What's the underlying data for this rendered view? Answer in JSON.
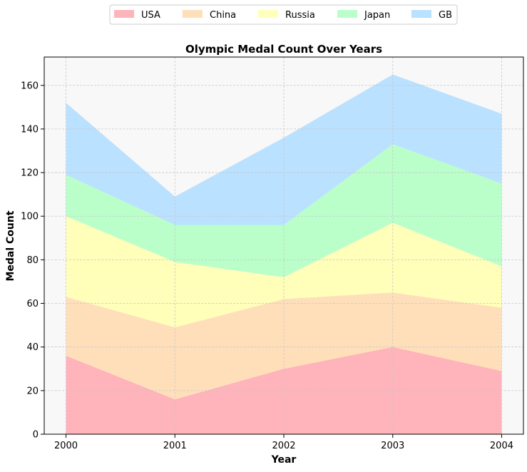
{
  "chart_data": {
    "type": "area",
    "stacked": true,
    "title": "Olympic Medal Count Over Years",
    "xlabel": "Year",
    "ylabel": "Medal Count",
    "x": [
      2000,
      2001,
      2002,
      2003,
      2004
    ],
    "x_tick_labels": [
      "2000",
      "2001",
      "2002",
      "2003",
      "2004"
    ],
    "y_ticks": [
      0,
      20,
      40,
      60,
      80,
      100,
      120,
      140,
      160
    ],
    "y_tick_labels": [
      "0",
      "20",
      "40",
      "60",
      "80",
      "100",
      "120",
      "140",
      "160"
    ],
    "xlim": [
      1999.8,
      2004.2
    ],
    "ylim": [
      0,
      173
    ],
    "grid": true,
    "legend_position": "top-center",
    "series": [
      {
        "name": "USA",
        "values": [
          36,
          16,
          30,
          40,
          29
        ],
        "color": "#ffb3ba"
      },
      {
        "name": "China",
        "values": [
          27,
          33,
          32,
          25,
          29
        ],
        "color": "#ffdfba"
      },
      {
        "name": "Russia",
        "values": [
          37,
          30,
          10,
          32,
          19
        ],
        "color": "#ffffba"
      },
      {
        "name": "Japan",
        "values": [
          19,
          17,
          24,
          36,
          38
        ],
        "color": "#baffc9"
      },
      {
        "name": "GB",
        "values": [
          33,
          13,
          40,
          32,
          32
        ],
        "color": "#bae1ff"
      }
    ]
  },
  "colors": {
    "plot_background": "#f8f8f8",
    "grid": "#c8c8c8",
    "axis": "#000000"
  }
}
